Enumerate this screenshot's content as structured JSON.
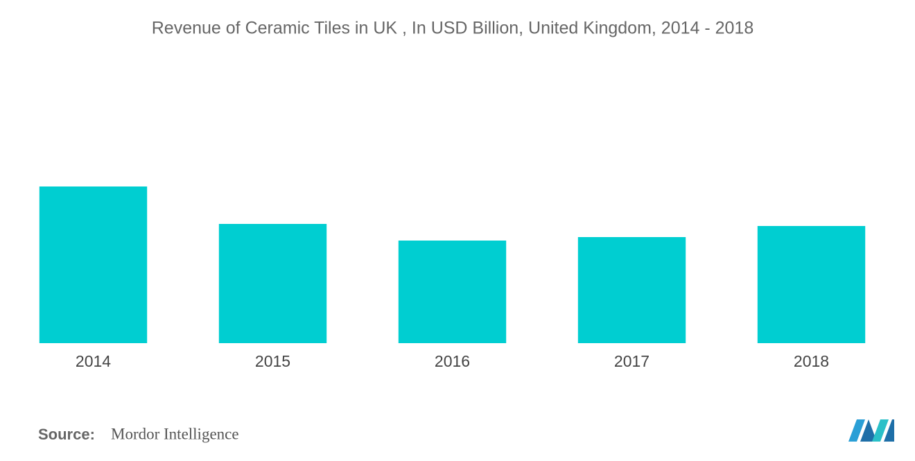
{
  "chart_data": {
    "type": "bar",
    "title": "Revenue of Ceramic Tiles in UK , In USD Billion, United Kingdom, 2014 - 2018",
    "categories": [
      "2014",
      "2015",
      "2016",
      "2017",
      "2018"
    ],
    "values": [
      2.26,
      1.72,
      1.48,
      1.53,
      1.69
    ],
    "color": "#00ced1",
    "ylim": [
      0,
      4
    ]
  },
  "source": {
    "label": "Source:",
    "text": "Mordor Intelligence"
  }
}
